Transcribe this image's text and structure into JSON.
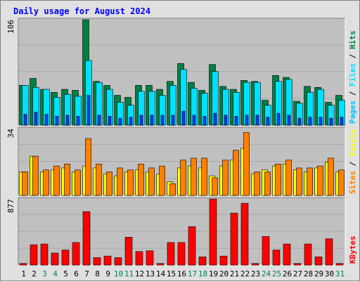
{
  "chart_data": [
    {
      "type": "bar",
      "title": "Daily usage for August 2024",
      "panel": "pages-files-hits",
      "ymax_label": "106",
      "ylim": [
        0,
        106
      ],
      "axis_label_parts": [
        "Pages",
        " / ",
        "Files",
        " / ",
        "Hits"
      ],
      "categories": [
        "1",
        "2",
        "3",
        "4",
        "5",
        "6",
        "7",
        "8",
        "9",
        "10",
        "11",
        "12",
        "13",
        "14",
        "15",
        "16",
        "17",
        "18",
        "19",
        "20",
        "21",
        "22",
        "23",
        "24",
        "25",
        "26",
        "27",
        "28",
        "29",
        "30",
        "31"
      ],
      "series": [
        {
          "name": "Hits",
          "values": [
            40,
            47,
            36,
            33,
            36,
            35,
            106,
            44,
            40,
            30,
            28,
            40,
            40,
            36,
            44,
            62,
            43,
            35,
            61,
            39,
            36,
            45,
            44,
            25,
            50,
            48,
            24,
            39,
            38,
            23,
            30
          ]
        },
        {
          "name": "Files",
          "values": [
            40,
            38,
            36,
            28,
            31,
            29,
            65,
            43,
            36,
            23,
            20,
            34,
            34,
            30,
            40,
            56,
            37,
            32,
            54,
            36,
            33,
            43,
            43,
            20,
            44,
            46,
            22,
            33,
            36,
            20,
            25
          ]
        },
        {
          "name": "Pages",
          "values": [
            11,
            13,
            11,
            9,
            10,
            9,
            30,
            10,
            9,
            7,
            8,
            10,
            10,
            10,
            10,
            14,
            10,
            9,
            12,
            10,
            9,
            10,
            10,
            8,
            12,
            10,
            7,
            8,
            8,
            7,
            8
          ]
        }
      ]
    },
    {
      "type": "bar",
      "panel": "sites-visits",
      "ymax_label": "34",
      "ylim": [
        0,
        34
      ],
      "axis_label_parts": [
        "Sites",
        " / ",
        "Visits"
      ],
      "categories": [
        "1",
        "2",
        "3",
        "4",
        "5",
        "6",
        "7",
        "8",
        "9",
        "10",
        "11",
        "12",
        "13",
        "14",
        "15",
        "16",
        "17",
        "18",
        "19",
        "20",
        "21",
        "22",
        "23",
        "24",
        "25",
        "26",
        "27",
        "28",
        "29",
        "30",
        "31"
      ],
      "series": [
        {
          "name": "Visits",
          "values": [
            12,
            20,
            13,
            15,
            16,
            13,
            29,
            16,
            12,
            14,
            13,
            16,
            14,
            15,
            6,
            18,
            19,
            19,
            9,
            18,
            23,
            32,
            12,
            12,
            16,
            18,
            14,
            14,
            15,
            19,
            13
          ]
        },
        {
          "name": "Sites",
          "values": [
            12,
            20,
            12,
            13,
            14,
            12,
            15,
            14,
            11,
            10,
            12,
            13,
            12,
            11,
            7,
            14,
            15,
            14,
            10,
            15,
            18,
            24,
            11,
            13,
            15,
            16,
            13,
            12,
            14,
            17,
            12
          ]
        }
      ]
    },
    {
      "type": "bar",
      "panel": "kbytes",
      "ymax_label": "877",
      "ylim": [
        0,
        877
      ],
      "axis_label_parts": [
        "KBytes"
      ],
      "categories": [
        "1",
        "2",
        "3",
        "4",
        "5",
        "6",
        "7",
        "8",
        "9",
        "10",
        "11",
        "12",
        "13",
        "14",
        "15",
        "16",
        "17",
        "18",
        "19",
        "20",
        "21",
        "22",
        "23",
        "24",
        "25",
        "26",
        "27",
        "28",
        "29",
        "30",
        "31"
      ],
      "series": [
        {
          "name": "KBytes",
          "values": [
            22,
            270,
            280,
            160,
            200,
            300,
            710,
            100,
            120,
            100,
            370,
            180,
            190,
            22,
            300,
            300,
            510,
            110,
            877,
            120,
            690,
            820,
            22,
            380,
            200,
            280,
            22,
            280,
            110,
            350,
            22
          ]
        }
      ]
    }
  ],
  "weekend_days": [
    "3",
    "4",
    "10",
    "11",
    "17",
    "18",
    "24",
    "25",
    "31"
  ],
  "colors": {
    "background": "#e0e0e0",
    "panel": "#c0c0c0",
    "title": "#0000ff",
    "hits": "#008040",
    "files": "#00e0ff",
    "pages": "#00c0ff",
    "pages_inner": "#0040ff",
    "visits": "#ff8000",
    "sites": "#ffff00",
    "kbytes": "#ff0000",
    "weekend_label": "#00805c",
    "weekday_label": "#000000"
  }
}
